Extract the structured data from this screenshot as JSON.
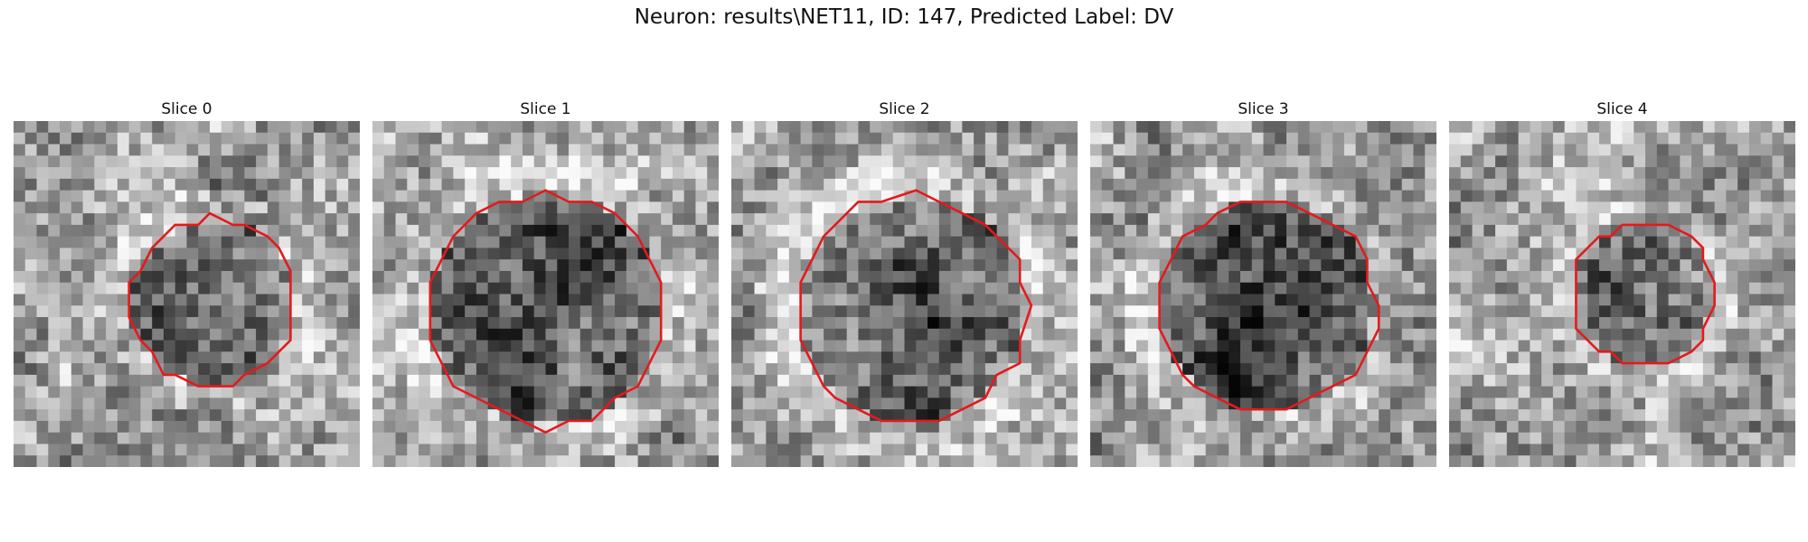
{
  "figure": {
    "title": "Neuron: results\\NET11, ID: 147, Predicted Label: DV",
    "contour_color": "#e41a1c"
  },
  "panels": [
    {
      "title": "Slice 0",
      "contour_center": [
        0.573,
        0.525
      ],
      "contour_radius": 0.24,
      "inner_dark": 0.55,
      "wobble": 0.03
    },
    {
      "title": "Slice 1",
      "contour_center": [
        0.5,
        0.545
      ],
      "contour_radius": 0.335,
      "inner_dark": 0.7,
      "wobble": 0.02
    },
    {
      "title": "Slice 2",
      "contour_center": [
        0.52,
        0.545
      ],
      "contour_radius": 0.33,
      "inner_dark": 0.6,
      "wobble": 0.02
    },
    {
      "title": "Slice 3",
      "contour_center": [
        0.51,
        0.535
      ],
      "contour_radius": 0.31,
      "inner_dark": 0.8,
      "wobble": 0.02
    },
    {
      "title": "Slice 4",
      "contour_center": [
        0.56,
        0.5
      ],
      "contour_radius": 0.205,
      "inner_dark": 0.45,
      "wobble": 0.03
    }
  ]
}
